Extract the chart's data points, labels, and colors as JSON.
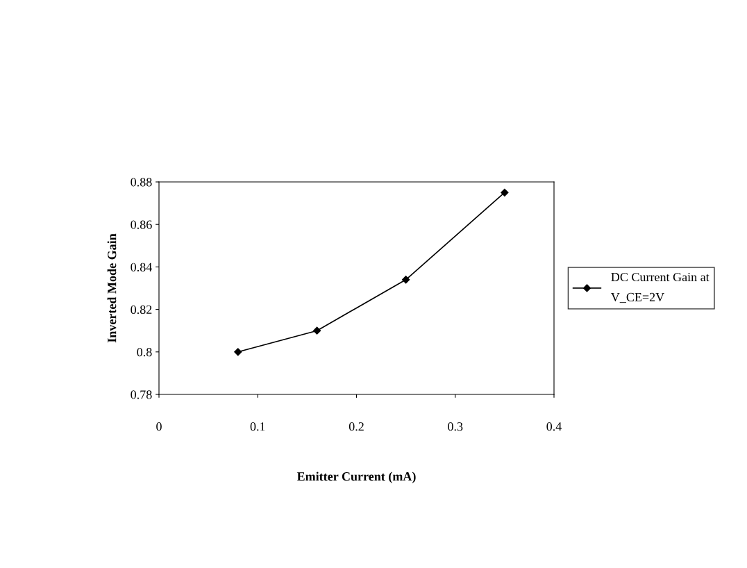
{
  "chart_data": {
    "type": "line",
    "xlabel": "Emitter Current (mA)",
    "ylabel": "Inverted Mode Gain",
    "x": [
      0.08,
      0.16,
      0.25,
      0.35
    ],
    "series": [
      {
        "name": "DC Current Gain at V_CE=2V",
        "color": "#000000",
        "values": [
          0.8,
          0.81,
          0.834,
          0.875
        ]
      }
    ],
    "xlim": [
      0,
      0.4
    ],
    "xticks": [
      0,
      0.1,
      0.2,
      0.3,
      0.4
    ],
    "ylim": [
      0.78,
      0.88
    ],
    "yticks": [
      0.78,
      0.8,
      0.82,
      0.84,
      0.86,
      0.88
    ],
    "grid": false,
    "legend": "right",
    "marker": "diamond",
    "line_style": "solid"
  }
}
